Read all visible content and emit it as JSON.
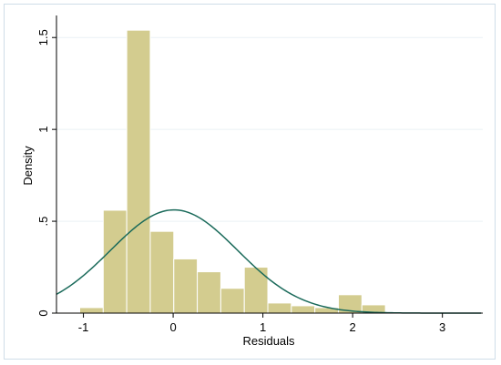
{
  "chart_data": {
    "type": "bar",
    "subtype": "histogram-with-density-curve",
    "xlabel": "Residuals",
    "ylabel": "Density",
    "xlim": [
      -1.3,
      3.45
    ],
    "ylim": [
      0,
      1.62
    ],
    "x_ticks": [
      -1,
      0,
      1,
      2,
      3
    ],
    "x_tick_labels": [
      "-1",
      "0",
      "1",
      "2",
      "3"
    ],
    "y_ticks": [
      0,
      0.5,
      1,
      1.5
    ],
    "y_tick_labels": [
      "0",
      ".5",
      "1",
      "1.5"
    ],
    "grid": "horizontal",
    "bin_width": 0.262,
    "bins": [
      {
        "x0": -1.303,
        "x1": -1.041,
        "density": 0.005
      },
      {
        "x0": -1.041,
        "x1": -0.779,
        "density": 0.03
      },
      {
        "x0": -0.779,
        "x1": -0.517,
        "density": 0.56
      },
      {
        "x0": -0.517,
        "x1": -0.255,
        "density": 1.54
      },
      {
        "x0": -0.255,
        "x1": 0.007,
        "density": 0.445
      },
      {
        "x0": 0.007,
        "x1": 0.269,
        "density": 0.295
      },
      {
        "x0": 0.269,
        "x1": 0.531,
        "density": 0.225
      },
      {
        "x0": 0.531,
        "x1": 0.793,
        "density": 0.135
      },
      {
        "x0": 0.793,
        "x1": 1.055,
        "density": 0.25
      },
      {
        "x0": 1.055,
        "x1": 1.317,
        "density": 0.055
      },
      {
        "x0": 1.317,
        "x1": 1.579,
        "density": 0.04
      },
      {
        "x0": 1.579,
        "x1": 1.841,
        "density": 0.03
      },
      {
        "x0": 1.841,
        "x1": 2.103,
        "density": 0.1
      },
      {
        "x0": 2.103,
        "x1": 2.365,
        "density": 0.045
      },
      {
        "x0": 2.365,
        "x1": 2.627,
        "density": 0.003
      },
      {
        "x0": 2.627,
        "x1": 2.889,
        "density": 0.002
      },
      {
        "x0": 2.889,
        "x1": 3.151,
        "density": 0.002
      },
      {
        "x0": 3.151,
        "x1": 3.413,
        "density": 0.005
      }
    ],
    "normal_curve": {
      "mean": 0.01,
      "sd": 0.71,
      "x_range": [
        -1.3,
        3.43
      ]
    },
    "colors": {
      "bar_fill": "#d3cc8f",
      "bar_stroke": "#ffffff",
      "curve": "#1a6a5a",
      "grid": "#eaf1f5",
      "frame": "#cfdde8"
    }
  }
}
